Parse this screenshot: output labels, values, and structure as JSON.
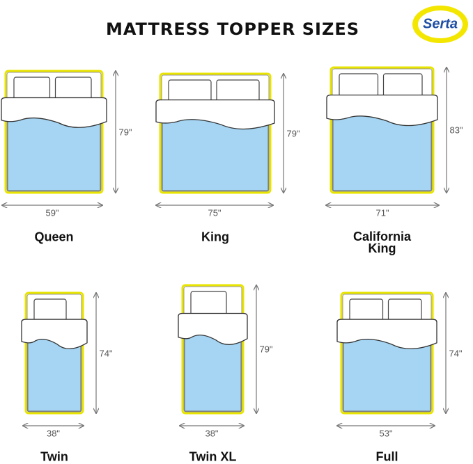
{
  "header": {
    "title": "MATTRESS TOPPER SIZES",
    "logo": "Serta"
  },
  "sizes": [
    {
      "name": "Queen",
      "width": "59\"",
      "length": "79\""
    },
    {
      "name": "King",
      "width": "75\"",
      "length": "79\""
    },
    {
      "name": "California King",
      "width": "71\"",
      "length": "83\""
    },
    {
      "name": "Twin",
      "width": "38\"",
      "length": "74\""
    },
    {
      "name": "Twin XL",
      "width": "38\"",
      "length": "79\""
    },
    {
      "name": "Full",
      "width": "53\"",
      "length": "74\""
    }
  ]
}
